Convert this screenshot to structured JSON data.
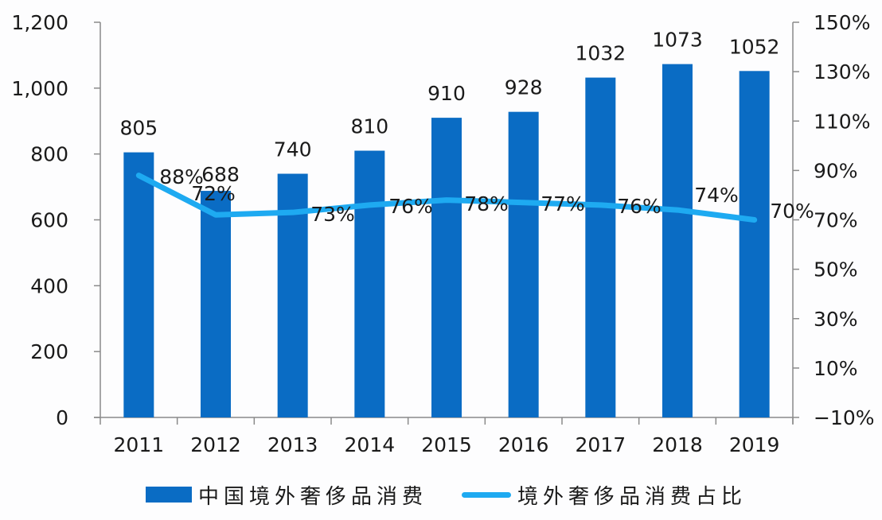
{
  "chart_data": {
    "type": "bar+line",
    "title": "",
    "categories": [
      "2011",
      "2012",
      "2013",
      "2014",
      "2015",
      "2016",
      "2017",
      "2018",
      "2019"
    ],
    "series": [
      {
        "name": "中国境外奢侈品消费",
        "type": "bar",
        "axis": "left",
        "color": "#0A6CC4",
        "values": [
          805,
          688,
          740,
          810,
          910,
          928,
          1032,
          1073,
          1052
        ],
        "labels": [
          "805",
          "688",
          "740",
          "810",
          "910",
          "928",
          "1032",
          "1073",
          "1052"
        ]
      },
      {
        "name": "境外奢侈品消费占比",
        "type": "line",
        "axis": "right",
        "color": "#1EAAF1",
        "values": [
          0.88,
          0.72,
          0.73,
          0.76,
          0.78,
          0.77,
          0.76,
          0.74,
          0.7
        ],
        "labels": [
          "88%",
          "72%",
          "73%",
          "76%",
          "78%",
          "77%",
          "76%",
          "74%",
          "70%"
        ]
      }
    ],
    "left_axis": {
      "ylim": [
        0,
        1200
      ],
      "ticks": [
        0,
        200,
        400,
        600,
        800,
        1000,
        1200
      ],
      "tick_labels": [
        "0",
        "200",
        "400",
        "600",
        "800",
        "1,000",
        "1,200"
      ]
    },
    "right_axis": {
      "ylim": [
        -0.1,
        1.5
      ],
      "ticks": [
        -0.1,
        0.1,
        0.3,
        0.5,
        0.7,
        0.9,
        1.1,
        1.3,
        1.5
      ],
      "tick_labels": [
        "−10%",
        "10%",
        "30%",
        "50%",
        "70%",
        "90%",
        "110%",
        "130%",
        "150%"
      ]
    },
    "xlabel": "",
    "ylabel": "",
    "grid": false,
    "legend_position": "bottom"
  },
  "legend": {
    "items": [
      {
        "label": "中国境外奢侈品消费",
        "kind": "bar",
        "color": "#0A6CC4"
      },
      {
        "label": "境外奢侈品消费占比",
        "kind": "line",
        "color": "#1EAAF1"
      }
    ]
  }
}
